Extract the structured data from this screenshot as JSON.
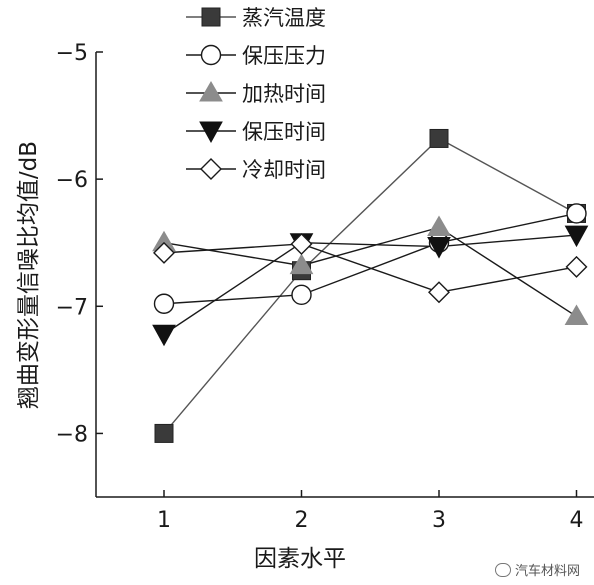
{
  "chart_data": {
    "type": "line",
    "xlabel": "因素水平",
    "ylabel": "翘曲变形量信噪比均值/dB",
    "x": [
      1,
      2,
      3,
      4
    ],
    "xticks": [
      "1",
      "2",
      "3",
      "4"
    ],
    "ylim": [
      -8.5,
      -5
    ],
    "yticks": [
      -8,
      -7,
      -6,
      -5
    ],
    "ytick_labels": [
      "−8",
      "−7",
      "−6",
      "−5"
    ],
    "grid": false,
    "legend_position": "top-left",
    "series": [
      {
        "name": "蒸汽温度",
        "marker": "square-filled",
        "color": "#3a3a3a",
        "line_color": "#555555",
        "values": [
          -8.0,
          -6.72,
          -5.68,
          -6.27
        ]
      },
      {
        "name": "保压压力",
        "marker": "circle-open",
        "color": "#1a1a1a",
        "line_color": "#1a1a1a",
        "values": [
          -6.98,
          -6.91,
          -6.5,
          -6.27
        ]
      },
      {
        "name": "加热时间",
        "marker": "triangle-up-filled",
        "color": "#8c8c8c",
        "line_color": "#1a1a1a",
        "values": [
          -6.5,
          -6.68,
          -6.38,
          -7.08
        ]
      },
      {
        "name": "保压时间",
        "marker": "triangle-down-filled",
        "color": "#111111",
        "line_color": "#1a1a1a",
        "values": [
          -7.22,
          -6.5,
          -6.53,
          -6.44
        ]
      },
      {
        "name": "冷却时间",
        "marker": "diamond-open",
        "color": "#1a1a1a",
        "line_color": "#1a1a1a",
        "values": [
          -6.58,
          -6.51,
          -6.89,
          -6.69
        ]
      }
    ]
  },
  "watermark": {
    "icon": "wechat-icon",
    "text": "汽车材料网"
  }
}
